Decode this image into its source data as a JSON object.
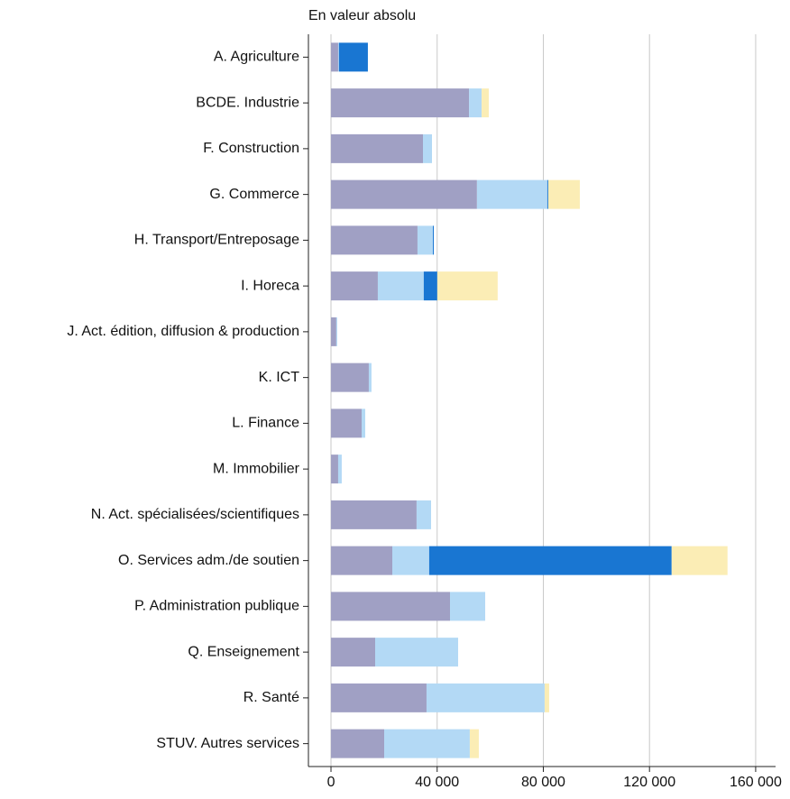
{
  "chart_data": {
    "type": "stacked_barh",
    "title": "En valeur absolu",
    "categories": [
      "A. Agriculture",
      "BCDE. Industrie",
      "F. Construction",
      "G. Commerce",
      "H. Transport/Entreposage",
      "I. Horeca",
      "J. Act. édition, diffusion & production",
      "K. ICT",
      "L. Finance",
      "M. Immobilier",
      "N. Act. spécialisées/scientifiques",
      "O. Services adm./de soutien",
      "P. Administration publique",
      "Q. Enseignement",
      "R. Santé",
      "STUV. Autres services"
    ],
    "series": [
      {
        "color": "#a0a0c4",
        "values": [
          2700,
          52000,
          34650,
          55000,
          32600,
          17650,
          2000,
          14250,
          11550,
          2700,
          32250,
          23100,
          44850,
          16650,
          36000,
          20050
        ]
      },
      {
        "color": "#b3d9f5",
        "values": [
          300,
          4750,
          3400,
          26500,
          5800,
          17300,
          350,
          1000,
          1350,
          1350,
          5450,
          13900,
          13250,
          31250,
          44500,
          32250
        ]
      },
      {
        "color": "#1976d2",
        "values": [
          10900,
          0,
          0,
          350,
          350,
          5100,
          0,
          0,
          0,
          0,
          0,
          91350,
          0,
          0,
          0,
          0
        ]
      },
      {
        "color": "#fbedb5",
        "values": [
          0,
          2700,
          0,
          11900,
          0,
          22750,
          0,
          0,
          0,
          0,
          0,
          21050,
          0,
          0,
          1700,
          3400
        ]
      }
    ],
    "xlim": [
      -8500,
      167500
    ],
    "xticks": [
      0,
      {
        "value": 40000,
        "label": "40 000"
      },
      {
        "value": 80000,
        "label": "80 000"
      },
      {
        "value": 120000,
        "label": "120 000"
      },
      {
        "value": 160000,
        "label": "160 000"
      }
    ],
    "grid": true
  }
}
